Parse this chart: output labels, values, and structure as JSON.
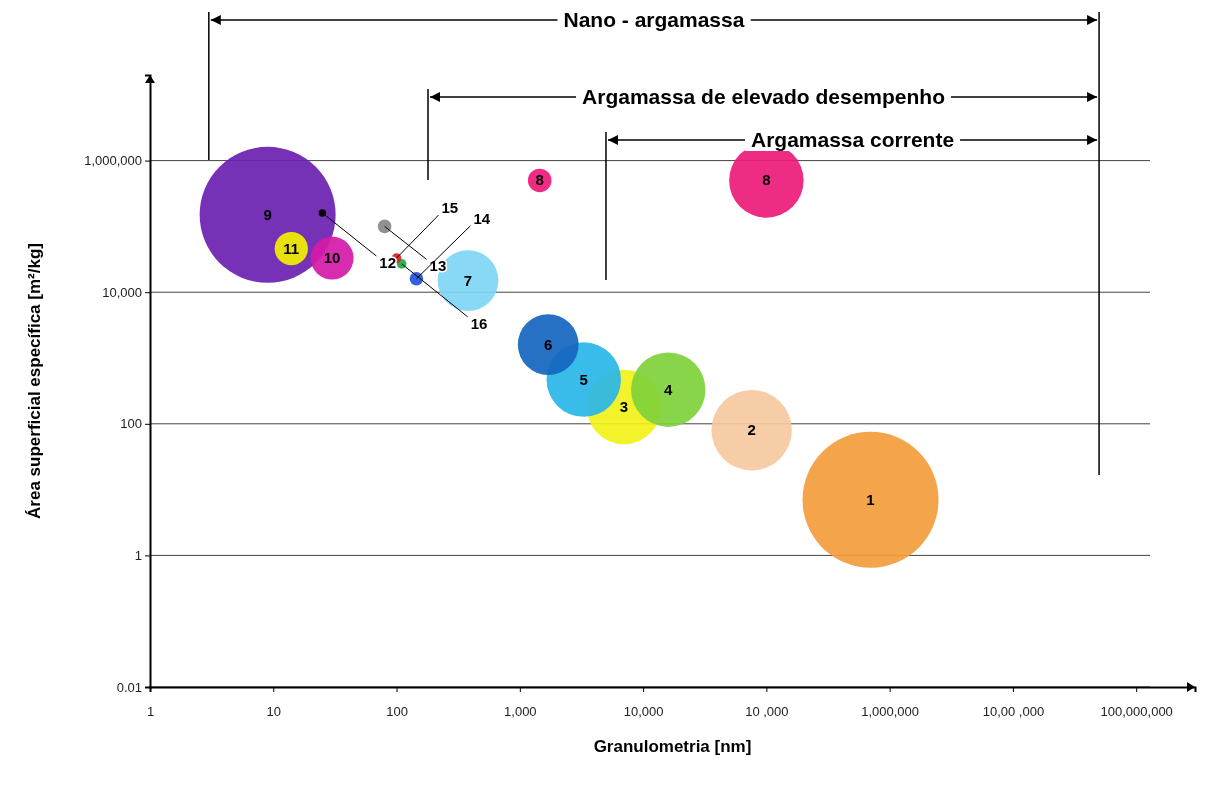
{
  "chart_data": {
    "type": "bubble",
    "xlabel": "Granulometria [nm]",
    "ylabel": "Área superficial específica [m²/kg]",
    "log": "xy",
    "grid": "y",
    "xlim": [
      1,
      300000000
    ],
    "xticks": [
      1,
      10,
      100,
      {
        "value": 1000,
        "label": "1,000"
      },
      {
        "value": 10000,
        "label": "10,000"
      },
      {
        "value": 100000,
        "label": "10 ,000"
      },
      {
        "value": 1000000,
        "label": "1,000,000"
      },
      {
        "value": 10000000,
        "label": "10,00 ,000"
      },
      {
        "value": 100000000,
        "label": "100,000,000"
      }
    ],
    "ylim": [
      0.01,
      20000000
    ],
    "yticks": [
      0.01,
      1,
      100,
      {
        "value": 10000,
        "label": "10,000"
      },
      {
        "value": 1000000,
        "label": "1,000,000"
      }
    ],
    "x": [
      700000,
      76000,
      7000,
      16000,
      3300,
      1700,
      380,
      1450,
      100000,
      9,
      30,
      14,
      80,
      145,
      110,
      100,
      25
    ],
    "values": [
      7,
      80,
      180,
      330,
      470,
      1600,
      15000,
      500000,
      500000,
      150000,
      33000,
      46000,
      100000,
      16000,
      27000,
      33000,
      160000
    ],
    "sizes": [
      1,
      0.35,
      0.3,
      0.3,
      0.3,
      0.2,
      0.2,
      0.03,
      0.3,
      1,
      0.1,
      0.06,
      0.01,
      0.01,
      0.005,
      0.005,
      0.003
    ],
    "colors": [
      "#f39c3c",
      "#f5c9a0",
      "#f2f21a",
      "#7fd13b",
      "#29b6e8",
      "#1565c0",
      "#7fd6f5",
      "#ee1a7a",
      "#ee1a7a",
      "#6a1fb0",
      "#d41aa8",
      "#f2f000",
      "#888888",
      "#2255dd",
      "#22aa44",
      "#e02020",
      "#000000"
    ],
    "annotations": [
      "Nano - argamassa",
      "Argamassa de elevado desempenho",
      "Argamassa corrente",
      {
        "text": "1",
        "x": 700000,
        "y": 7
      },
      {
        "text": "2",
        "x": 76000,
        "y": 80
      },
      {
        "text": "3",
        "x": 7000,
        "y": 180
      },
      {
        "text": "4",
        "x": 16000,
        "y": 330
      },
      {
        "text": "5",
        "x": 3300,
        "y": 470
      },
      {
        "text": "6",
        "x": 1700,
        "y": 1600
      },
      {
        "text": "7",
        "x": 380,
        "y": 15000
      },
      {
        "text": "8",
        "x": 1450,
        "y": 500000
      },
      {
        "text": "8",
        "x": 100000,
        "y": 500000
      },
      {
        "text": "9",
        "x": 9,
        "y": 150000
      },
      {
        "text": "10",
        "x": 30,
        "y": 33000
      },
      {
        "text": "11",
        "x": 14,
        "y": 46000
      },
      {
        "text": "13",
        "x": 80,
        "y": 100000
      },
      {
        "text": "14",
        "x": 145,
        "y": 16000
      },
      {
        "text": "16",
        "x": 110,
        "y": 27000
      },
      {
        "text": "15",
        "x": 100,
        "y": 33000
      },
      {
        "text": "12",
        "x": 25,
        "y": 160000
      }
    ],
    "ref_lines": [
      {
        "axis": "x",
        "value": 3
      },
      {
        "axis": "x",
        "value": 180
      },
      {
        "axis": "x",
        "value": 5000
      },
      {
        "axis": "x",
        "value": 50000000
      }
    ]
  }
}
